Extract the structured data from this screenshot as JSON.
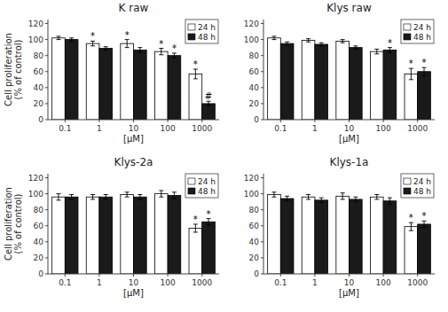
{
  "chart_data": [
    {
      "type": "bar",
      "title": "K raw",
      "categories": [
        "0.1",
        "1",
        "10",
        "100",
        "1000"
      ],
      "x_label": "[μM]",
      "y_label": "Cell proliferation\n(% of control)",
      "ylim": [
        0,
        125
      ],
      "yticks": [
        0,
        20,
        40,
        60,
        80,
        100,
        120
      ],
      "grid": false,
      "legend": "upper right",
      "series": [
        {
          "name": "24 h",
          "color": "#ffffff",
          "values": [
            102,
            95,
            95,
            85,
            57
          ],
          "errors": [
            2,
            3,
            5,
            4,
            6
          ],
          "annotations": [
            null,
            "*",
            "*",
            "*",
            "*"
          ]
        },
        {
          "name": "48 h",
          "color": "#1a1a1a",
          "values": [
            100,
            89,
            87,
            80,
            20
          ],
          "errors": [
            2,
            2,
            3,
            3,
            3
          ],
          "annotations": [
            null,
            null,
            null,
            "*",
            "#"
          ]
        }
      ]
    },
    {
      "type": "bar",
      "title": "Klys raw",
      "categories": [
        "0.1",
        "1",
        "10",
        "100",
        "1000"
      ],
      "x_label": "[μM]",
      "ylim": [
        0,
        125
      ],
      "yticks": [
        0,
        20,
        40,
        60,
        80,
        100,
        120
      ],
      "grid": false,
      "legend": "upper right",
      "series": [
        {
          "name": "24 h",
          "color": "#ffffff",
          "values": [
            102,
            99,
            98,
            85,
            57
          ],
          "errors": [
            2,
            2,
            2,
            3,
            7
          ],
          "annotations": [
            null,
            null,
            null,
            null,
            "*"
          ]
        },
        {
          "name": "48 h",
          "color": "#1a1a1a",
          "values": [
            95,
            94,
            90,
            87,
            60
          ],
          "errors": [
            2,
            2,
            2,
            3,
            5
          ],
          "annotations": [
            null,
            null,
            null,
            "*",
            "*"
          ]
        }
      ]
    },
    {
      "type": "bar",
      "title": "Klys-2a",
      "categories": [
        "0.1",
        "1",
        "10",
        "100",
        "1000"
      ],
      "x_label": "[μM]",
      "y_label": "Cell proliferation\n(% of control)",
      "ylim": [
        0,
        125
      ],
      "yticks": [
        0,
        20,
        40,
        60,
        80,
        100,
        120
      ],
      "grid": false,
      "legend": "upper right",
      "series": [
        {
          "name": "24 h",
          "color": "#ffffff",
          "values": [
            96,
            96,
            99,
            100,
            57
          ],
          "errors": [
            4,
            3,
            3,
            4,
            5
          ],
          "annotations": [
            null,
            null,
            null,
            null,
            "*"
          ]
        },
        {
          "name": "48 h",
          "color": "#1a1a1a",
          "values": [
            96,
            96,
            96,
            98,
            65
          ],
          "errors": [
            3,
            3,
            3,
            4,
            4
          ],
          "annotations": [
            null,
            null,
            null,
            null,
            "*"
          ]
        }
      ]
    },
    {
      "type": "bar",
      "title": "Klys-1a",
      "categories": [
        "0.1",
        "1",
        "10",
        "100",
        "1000"
      ],
      "x_label": "[μM]",
      "ylim": [
        0,
        125
      ],
      "yticks": [
        0,
        20,
        40,
        60,
        80,
        100,
        120
      ],
      "grid": false,
      "legend": "upper right",
      "series": [
        {
          "name": "24 h",
          "color": "#ffffff",
          "values": [
            99,
            96,
            97,
            96,
            59
          ],
          "errors": [
            3,
            3,
            4,
            3,
            5
          ],
          "annotations": [
            null,
            null,
            null,
            null,
            "*"
          ]
        },
        {
          "name": "48 h",
          "color": "#1a1a1a",
          "values": [
            94,
            92,
            93,
            91,
            62
          ],
          "errors": [
            3,
            3,
            3,
            4,
            4
          ],
          "annotations": [
            null,
            null,
            null,
            null,
            "*"
          ]
        }
      ]
    }
  ]
}
